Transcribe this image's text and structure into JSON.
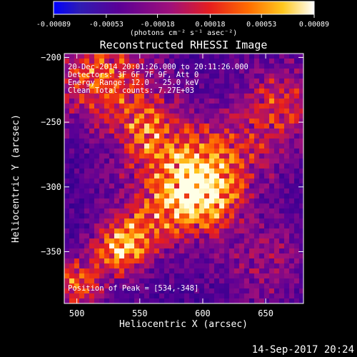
{
  "chart_data": {
    "type": "heatmap",
    "title": "Reconstructed RHESSI Image",
    "xlabel": "Heliocentric X (arcsec)",
    "ylabel": "Heliocentric Y (arcsec)",
    "xlim": [
      490,
      680
    ],
    "ylim": [
      -390,
      -197
    ],
    "x_ticks": [
      500,
      550,
      600,
      650
    ],
    "y_ticks": [
      -200,
      -250,
      -300,
      -350
    ],
    "colorbar": {
      "min": -0.00089,
      "max": 0.00089,
      "tick_values": [
        -0.00089,
        -0.00053,
        -0.00018,
        0.00018,
        0.00053,
        0.00089
      ],
      "tick_labels": [
        "-0.00089",
        "-0.00053",
        "-0.00018",
        "0.00018",
        "0.00053",
        "0.00089"
      ],
      "units": "(photons cm⁻² s⁻¹ asec⁻²)"
    },
    "annotations": [
      "20-Dec-2014 20:01:26.000 to 20:11:26.000",
      "Detectors: 3F 6F 7F 9F, Att 0",
      "Energy Range: 12.0 - 25.0 keV",
      "Clean    Total counts: 7.27E+03"
    ],
    "peak_label": "Position of Peak = [534,-348]",
    "peak": {
      "x": 534,
      "y": -348
    },
    "sources": [
      {
        "x": 600,
        "y": -305,
        "amplitude": 1.0,
        "sigma": 22
      },
      {
        "x": 580,
        "y": -285,
        "amplitude": 0.55,
        "sigma": 28
      },
      {
        "x": 520,
        "y": -215,
        "amplitude": 0.75,
        "sigma": 28
      },
      {
        "x": 665,
        "y": -235,
        "amplitude": 0.6,
        "sigma": 22
      },
      {
        "x": 555,
        "y": -255,
        "amplitude": 0.55,
        "sigma": 18
      },
      {
        "x": 534,
        "y": -348,
        "amplitude": 0.95,
        "sigma": 14
      },
      {
        "x": 500,
        "y": -375,
        "amplitude": 0.8,
        "sigma": 15
      },
      {
        "x": 555,
        "y": -330,
        "amplitude": 0.5,
        "sigma": 20
      },
      {
        "x": 650,
        "y": -360,
        "amplitude": 0.35,
        "sigma": 25
      },
      {
        "x": 630,
        "y": -270,
        "amplitude": 0.35,
        "sigma": 25
      }
    ]
  },
  "footer": {
    "timestamp": "14-Sep-2017 20:24"
  },
  "colors": {
    "background": "#000000",
    "text": "#ffffff",
    "colormap": [
      "#0000ff",
      "#5a0096",
      "#a0107a",
      "#e61e1e",
      "#ff6e00",
      "#ffc81e",
      "#ffffff"
    ]
  }
}
